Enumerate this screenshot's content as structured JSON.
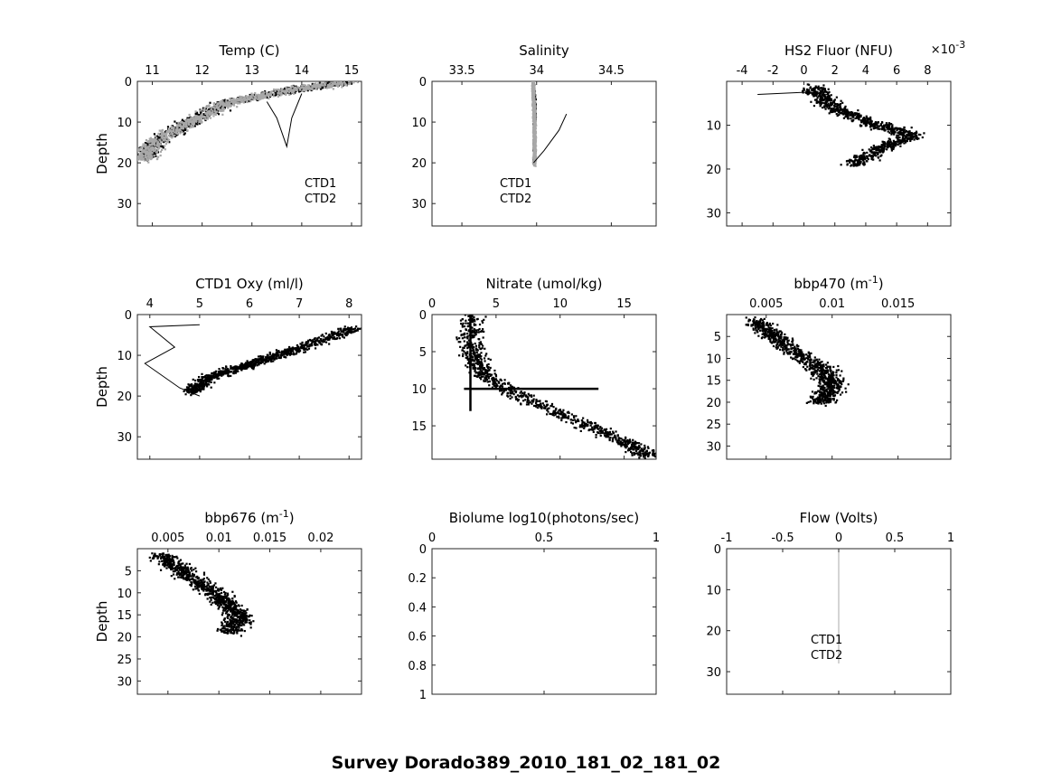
{
  "figure_title": "Survey Dorado389_2010_181_02_181_02",
  "chart_data": [
    {
      "id": "temp",
      "type": "scatter",
      "title": "Temp (C)",
      "ylabel": "Depth",
      "xlim": [
        10.7,
        15.2
      ],
      "ylim": [
        0,
        35.5
      ],
      "xticks": [
        11,
        12,
        13,
        14,
        15
      ],
      "xtick_labels": [
        "11",
        "12",
        "13",
        "14",
        "15"
      ],
      "yticks": [
        0,
        10,
        20,
        30
      ],
      "ytick_labels": [
        "0",
        "10",
        "20",
        "30"
      ],
      "legend": [
        "CTD1",
        "CTD2"
      ],
      "series": [
        {
          "name": "CTD1",
          "color": "#000000",
          "trend": [
            [
              14.9,
              0
            ],
            [
              13.7,
              2
            ],
            [
              12.5,
              5
            ],
            [
              11.7,
              10
            ],
            [
              11.0,
              15
            ],
            [
              10.8,
              19
            ]
          ],
          "spread": 0.3
        },
        {
          "name": "CTD2",
          "color": "#a8a8a8",
          "trend": [
            [
              14.9,
              0
            ],
            [
              13.7,
              2
            ],
            [
              12.5,
              5
            ],
            [
              11.7,
              10
            ],
            [
              11.0,
              15
            ],
            [
              10.8,
              19
            ]
          ],
          "spread": 0.35
        }
      ],
      "lines": [
        [
          [
            13.3,
            5
          ],
          [
            13.5,
            9
          ],
          [
            13.7,
            16
          ],
          [
            13.8,
            9
          ],
          [
            14.0,
            3
          ]
        ]
      ]
    },
    {
      "id": "salinity",
      "type": "scatter",
      "title": "Salinity",
      "ylabel": "",
      "xlim": [
        33.3,
        34.8
      ],
      "ylim": [
        0,
        35.5
      ],
      "xticks": [
        33.5,
        34,
        34.5
      ],
      "xtick_labels": [
        "33.5",
        "34",
        "34.5"
      ],
      "yticks": [
        0,
        10,
        20,
        30
      ],
      "ytick_labels": [
        "0",
        "10",
        "20",
        "30"
      ],
      "legend": [
        "CTD1",
        "CTD2"
      ],
      "series": [
        {
          "name": "CTD1",
          "color": "#000000",
          "trend": [
            [
              33.97,
              0
            ],
            [
              33.98,
              5
            ],
            [
              33.98,
              10
            ],
            [
              33.98,
              15
            ],
            [
              33.98,
              20
            ]
          ],
          "spread": 0.01
        },
        {
          "name": "CTD2",
          "color": "#a8a8a8",
          "trend": [
            [
              33.97,
              0
            ],
            [
              33.98,
              10
            ],
            [
              33.98,
              20
            ]
          ],
          "spread": 0.012
        }
      ],
      "lines": [
        [
          [
            33.98,
            20
          ],
          [
            34.05,
            17
          ],
          [
            34.15,
            12
          ],
          [
            34.2,
            8
          ]
        ]
      ]
    },
    {
      "id": "fluor",
      "type": "scatter",
      "title": "HS2 Fluor (NFU)",
      "ylabel": "",
      "xscale_label": "×10-3",
      "xlim": [
        -5,
        9.5
      ],
      "ylim": [
        0,
        33
      ],
      "xticks": [
        -4,
        -2,
        0,
        2,
        4,
        6,
        8
      ],
      "xtick_labels": [
        "-4",
        "-2",
        "0",
        "2",
        "4",
        "6",
        "8"
      ],
      "yticks": [
        10,
        20,
        30
      ],
      "ytick_labels": [
        "10",
        "20",
        "30"
      ],
      "legend": [],
      "series": [
        {
          "name": "",
          "color": "#000000",
          "trend": [
            [
              0.5,
              1
            ],
            [
              1.5,
              5
            ],
            [
              4,
              9
            ],
            [
              7,
              12
            ],
            [
              5,
              15
            ],
            [
              3,
              19
            ]
          ],
          "spread": 1.2
        }
      ],
      "lines": [
        [
          [
            -3,
            3
          ],
          [
            0,
            2.5
          ],
          [
            1.5,
            3
          ]
        ]
      ]
    },
    {
      "id": "oxy",
      "type": "scatter",
      "title": "CTD1 Oxy (ml/l)",
      "ylabel": "Depth",
      "xlim": [
        3.75,
        8.25
      ],
      "ylim": [
        0,
        35.5
      ],
      "xticks": [
        4,
        5,
        6,
        7,
        8
      ],
      "xtick_labels": [
        "4",
        "5",
        "6",
        "7",
        "8"
      ],
      "yticks": [
        0,
        10,
        20,
        30
      ],
      "ytick_labels": [
        "0",
        "10",
        "20",
        "30"
      ],
      "legend": [],
      "series": [
        {
          "name": "",
          "color": "#000000",
          "trend": [
            [
              8.1,
              3
            ],
            [
              7.0,
              8
            ],
            [
              6.0,
              12
            ],
            [
              5.2,
              15
            ],
            [
              4.8,
              19
            ]
          ],
          "spread": 0.3
        }
      ],
      "lines": [
        [
          [
            5.0,
            2.5
          ],
          [
            4.0,
            3
          ],
          [
            4.5,
            8
          ],
          [
            3.9,
            12
          ],
          [
            4.6,
            18
          ],
          [
            5.0,
            20
          ]
        ]
      ]
    },
    {
      "id": "nitrate",
      "type": "scatter",
      "title": "Nitrate (umol/kg)",
      "ylabel": "",
      "xlim": [
        0,
        17.5
      ],
      "ylim": [
        0,
        19.5
      ],
      "xticks": [
        0,
        5,
        10,
        15
      ],
      "xtick_labels": [
        "0",
        "5",
        "10",
        "15"
      ],
      "yticks": [
        0,
        5,
        10,
        15
      ],
      "ytick_labels": [
        "0",
        "5",
        "10",
        "15"
      ],
      "legend": [],
      "series": [
        {
          "name": "",
          "color": "#000000",
          "trend": [
            [
              3,
              0
            ],
            [
              3,
              5
            ],
            [
              4,
              8
            ],
            [
              7,
              11
            ],
            [
              11,
              14
            ],
            [
              15,
              17
            ],
            [
              17,
              19
            ]
          ],
          "spread": 1.5
        }
      ],
      "lines": [
        [
          [
            2.5,
            10
          ],
          [
            13,
            10
          ]
        ],
        [
          [
            3,
            0
          ],
          [
            3,
            13
          ]
        ]
      ]
    },
    {
      "id": "bbp470",
      "type": "scatter",
      "title": "bbp470 (m-1)",
      "ylabel": "",
      "xlim": [
        0.002,
        0.019
      ],
      "ylim": [
        0,
        33
      ],
      "xticks": [
        0.005,
        0.01,
        0.015
      ],
      "xtick_labels": [
        "0.005",
        "0.01",
        "0.015"
      ],
      "yticks": [
        5,
        10,
        15,
        20,
        25,
        30
      ],
      "ytick_labels": [
        "5",
        "10",
        "15",
        "20",
        "25",
        "30"
      ],
      "legend": [],
      "series": [
        {
          "name": "",
          "color": "#000000",
          "trend": [
            [
              0.004,
              1
            ],
            [
              0.006,
              6
            ],
            [
              0.009,
              12
            ],
            [
              0.01,
              16
            ],
            [
              0.009,
              20
            ]
          ],
          "spread": 0.0015
        }
      ],
      "lines": []
    },
    {
      "id": "bbp676",
      "type": "scatter",
      "title": "bbp676 (m-1)",
      "ylabel": "Depth",
      "xlim": [
        0.002,
        0.024
      ],
      "ylim": [
        0,
        33
      ],
      "xticks": [
        0.005,
        0.01,
        0.015,
        0.02
      ],
      "xtick_labels": [
        "0.005",
        "0.01",
        "0.015",
        "0.02"
      ],
      "yticks": [
        5,
        10,
        15,
        20,
        25,
        30
      ],
      "ytick_labels": [
        "5",
        "10",
        "15",
        "20",
        "25",
        "30"
      ],
      "legend": [],
      "series": [
        {
          "name": "",
          "color": "#000000",
          "trend": [
            [
              0.004,
              1
            ],
            [
              0.007,
              6
            ],
            [
              0.01,
              11
            ],
            [
              0.012,
              15
            ],
            [
              0.011,
              19
            ]
          ],
          "spread": 0.002
        }
      ],
      "lines": []
    },
    {
      "id": "biolume",
      "type": "scatter",
      "title": "Biolume log10(photons/sec)",
      "ylabel": "",
      "xlim": [
        0,
        1
      ],
      "ylim": [
        0,
        1
      ],
      "xticks": [
        0,
        0.5,
        1
      ],
      "xtick_labels": [
        "0",
        "0.5",
        "1"
      ],
      "yticks": [
        0,
        0.2,
        0.4,
        0.6,
        0.8,
        1
      ],
      "ytick_labels": [
        "0",
        "0.2",
        "0.4",
        "0.6",
        "0.8",
        "1"
      ],
      "legend": [],
      "series": [],
      "lines": []
    },
    {
      "id": "flow",
      "type": "scatter",
      "title": "Flow (Volts)",
      "ylabel": "",
      "xlim": [
        -1,
        1
      ],
      "ylim": [
        0,
        35.5
      ],
      "xticks": [
        -1,
        -0.5,
        0,
        0.5,
        1
      ],
      "xtick_labels": [
        "-1",
        "-0.5",
        "0",
        "0.5",
        "1"
      ],
      "yticks": [
        0,
        10,
        20,
        30
      ],
      "ytick_labels": [
        "0",
        "10",
        "20",
        "30"
      ],
      "legend": [
        "CTD1",
        "CTD2"
      ],
      "series": [],
      "lines": [
        [
          [
            0,
            0
          ],
          [
            0,
            28
          ]
        ]
      ]
    }
  ]
}
